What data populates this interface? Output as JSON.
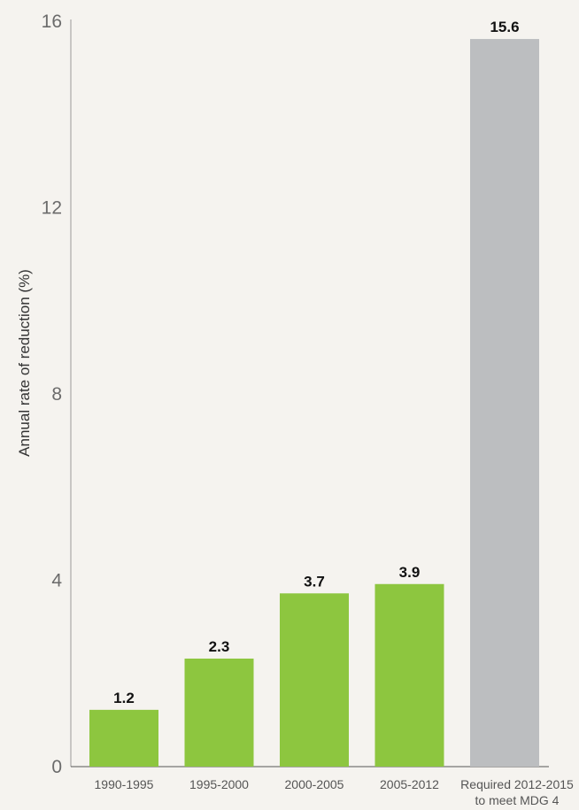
{
  "chart_data": {
    "type": "bar",
    "categories": [
      "1990-1995",
      "1995-2000",
      "2000-2005",
      "2005-2012",
      "Required 2012-2015 to meet MDG 4"
    ],
    "category_lines": [
      [
        "1990-1995"
      ],
      [
        "1995-2000"
      ],
      [
        "2000-2005"
      ],
      [
        "2005-2012"
      ],
      [
        "Required 2012-2015",
        "to meet MDG 4"
      ]
    ],
    "values": [
      1.2,
      2.3,
      3.7,
      3.9,
      15.6
    ],
    "data_labels": [
      "1.2",
      "2.3",
      "3.7",
      "3.9",
      "15.6"
    ],
    "bar_colors": [
      "#8dc63f",
      "#8dc63f",
      "#8dc63f",
      "#8dc63f",
      "#bcbec0"
    ],
    "title": "",
    "xlabel": "",
    "ylabel": "Annual rate of reduction (%)",
    "ylim": [
      0,
      16
    ],
    "yticks": [
      0,
      4,
      8,
      12,
      16
    ],
    "grid": false,
    "legend": "none"
  }
}
